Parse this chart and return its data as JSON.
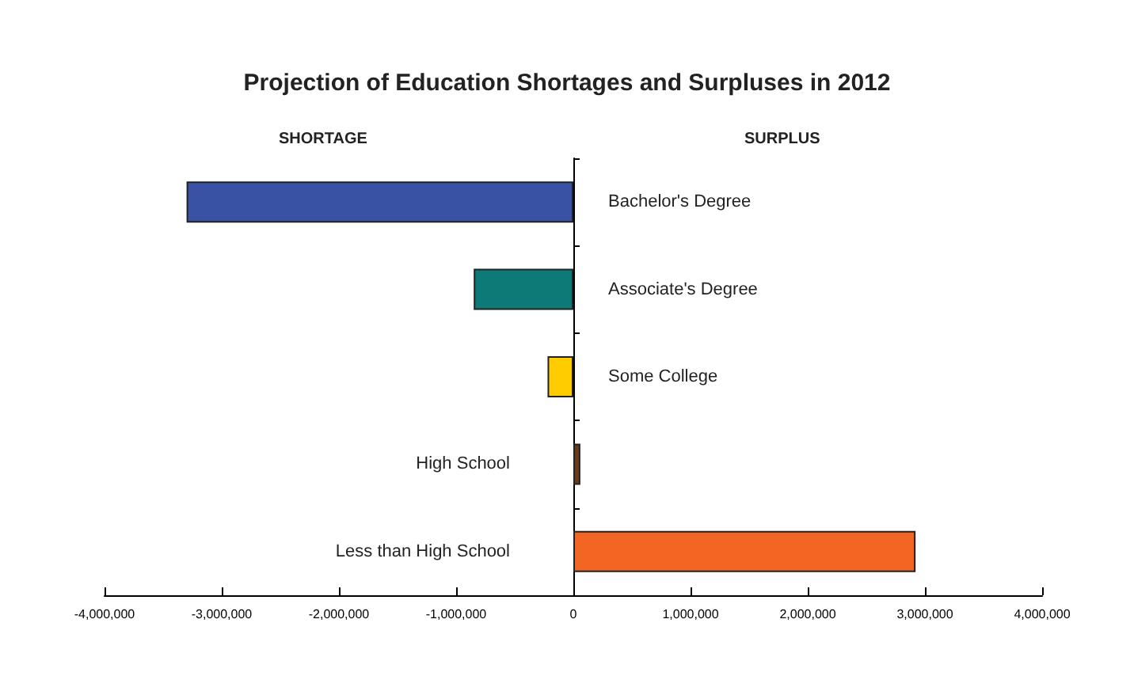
{
  "chart_data": {
    "type": "bar",
    "orientation": "horizontal",
    "title": "Projection of Education Shortages and Surpluses in 2012",
    "annotations": [
      "SHORTAGE",
      "SURPLUS"
    ],
    "categories": [
      "Bachelor's Degree",
      "Associate's Degree",
      "Some College",
      "High School",
      "Less than High School"
    ],
    "values": [
      -3300000,
      -850000,
      -220000,
      60000,
      2920000
    ],
    "colors": [
      "#3a52a3",
      "#0e7a78",
      "#ffcc00",
      "#6b3a1a",
      "#f26522"
    ],
    "xlim": [
      -4000000,
      4000000
    ],
    "xticks": [
      {
        "value": -4000000,
        "label": "-4,000,000"
      },
      {
        "value": -3000000,
        "label": "-3,000,000"
      },
      {
        "value": -2000000,
        "label": "-2,000,000"
      },
      {
        "value": -1000000,
        "label": "-1,000,000"
      },
      0,
      {
        "value": 1000000,
        "label": "1,000,000"
      },
      {
        "value": 2000000,
        "label": "2,000,000"
      },
      {
        "value": 3000000,
        "label": "3,000,000"
      },
      {
        "value": 4000000,
        "label": "4,000,000"
      }
    ],
    "grid": false
  }
}
